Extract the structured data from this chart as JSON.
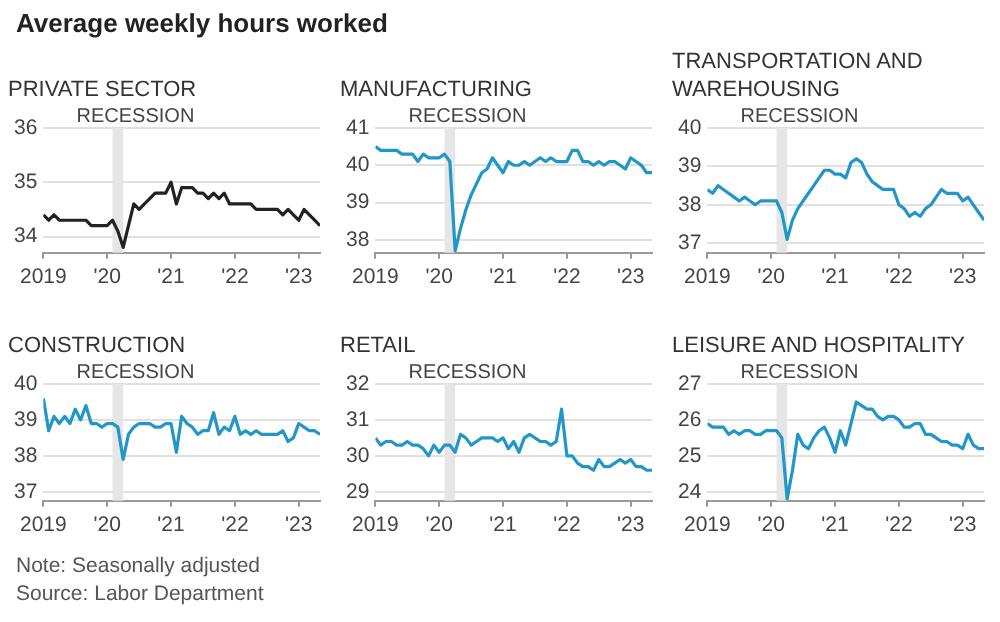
{
  "chart_data": [
    {
      "type": "line",
      "title": "Average weekly hours worked",
      "subtitle": "PRIVATE SECTOR",
      "color": "#222222",
      "ylim": [
        33.7,
        36
      ],
      "yticks": [
        34,
        35,
        36
      ],
      "xlim": [
        "2019-01",
        "2023-05"
      ],
      "xticks": [
        {
          "value": "2019-01",
          "label": "2019"
        },
        {
          "value": "2020-01",
          "label": "'20"
        },
        {
          "value": "2021-01",
          "label": "'21"
        },
        {
          "value": "2022-01",
          "label": "'22"
        },
        {
          "value": "2023-01",
          "label": "'23"
        }
      ],
      "grid": "y",
      "bands": [
        {
          "axis": "x",
          "from": "2020-02",
          "to": "2020-04",
          "label": "RECESSION",
          "color": "#e6e6e6"
        }
      ],
      "x": [
        "2019-01",
        "2019-02",
        "2019-03",
        "2019-04",
        "2019-05",
        "2019-06",
        "2019-07",
        "2019-08",
        "2019-09",
        "2019-10",
        "2019-11",
        "2019-12",
        "2020-01",
        "2020-02",
        "2020-03",
        "2020-04",
        "2020-05",
        "2020-06",
        "2020-07",
        "2020-08",
        "2020-09",
        "2020-10",
        "2020-11",
        "2020-12",
        "2021-01",
        "2021-02",
        "2021-03",
        "2021-04",
        "2021-05",
        "2021-06",
        "2021-07",
        "2021-08",
        "2021-09",
        "2021-10",
        "2021-11",
        "2021-12",
        "2022-01",
        "2022-02",
        "2022-03",
        "2022-04",
        "2022-05",
        "2022-06",
        "2022-07",
        "2022-08",
        "2022-09",
        "2022-10",
        "2022-11",
        "2022-12",
        "2023-01",
        "2023-02",
        "2023-03",
        "2023-04",
        "2023-05"
      ],
      "values": [
        34.4,
        34.3,
        34.4,
        34.3,
        34.3,
        34.3,
        34.3,
        34.3,
        34.3,
        34.2,
        34.2,
        34.2,
        34.2,
        34.3,
        34.1,
        33.8,
        34.2,
        34.6,
        34.5,
        34.6,
        34.7,
        34.8,
        34.8,
        34.8,
        35.0,
        34.6,
        34.9,
        34.9,
        34.9,
        34.8,
        34.8,
        34.7,
        34.8,
        34.7,
        34.8,
        34.6,
        34.6,
        34.6,
        34.6,
        34.6,
        34.5,
        34.5,
        34.5,
        34.5,
        34.5,
        34.4,
        34.5,
        34.4,
        34.3,
        34.5,
        34.4,
        34.3,
        34.2
      ]
    },
    {
      "type": "line",
      "title": "MANUFACTURING",
      "color": "#2196c8",
      "ylim": [
        37.65,
        41
      ],
      "yticks": [
        38,
        39,
        40,
        41
      ],
      "xlim": [
        "2019-01",
        "2023-05"
      ],
      "xticks": [
        {
          "value": "2019-01",
          "label": "2019"
        },
        {
          "value": "2020-01",
          "label": "'20"
        },
        {
          "value": "2021-01",
          "label": "'21"
        },
        {
          "value": "2022-01",
          "label": "'22"
        },
        {
          "value": "2023-01",
          "label": "'23"
        }
      ],
      "grid": "y",
      "bands": [
        {
          "axis": "x",
          "from": "2020-02",
          "to": "2020-04",
          "label": "RECESSION",
          "color": "#e6e6e6"
        }
      ],
      "x": [
        "2019-01",
        "2019-02",
        "2019-03",
        "2019-04",
        "2019-05",
        "2019-06",
        "2019-07",
        "2019-08",
        "2019-09",
        "2019-10",
        "2019-11",
        "2019-12",
        "2020-01",
        "2020-02",
        "2020-03",
        "2020-04",
        "2020-05",
        "2020-06",
        "2020-07",
        "2020-08",
        "2020-09",
        "2020-10",
        "2020-11",
        "2020-12",
        "2021-01",
        "2021-02",
        "2021-03",
        "2021-04",
        "2021-05",
        "2021-06",
        "2021-07",
        "2021-08",
        "2021-09",
        "2021-10",
        "2021-11",
        "2021-12",
        "2022-01",
        "2022-02",
        "2022-03",
        "2022-04",
        "2022-05",
        "2022-06",
        "2022-07",
        "2022-08",
        "2022-09",
        "2022-10",
        "2022-11",
        "2022-12",
        "2023-01",
        "2023-02",
        "2023-03",
        "2023-04",
        "2023-05"
      ],
      "values": [
        40.5,
        40.4,
        40.4,
        40.4,
        40.4,
        40.3,
        40.3,
        40.3,
        40.1,
        40.3,
        40.2,
        40.2,
        40.2,
        40.3,
        40.1,
        37.7,
        38.3,
        38.8,
        39.2,
        39.5,
        39.8,
        39.9,
        40.2,
        40.0,
        39.8,
        40.1,
        40.0,
        40.0,
        40.1,
        40.0,
        40.1,
        40.2,
        40.1,
        40.2,
        40.1,
        40.1,
        40.1,
        40.4,
        40.4,
        40.1,
        40.1,
        40.0,
        40.1,
        40.0,
        40.1,
        40.1,
        40.0,
        39.9,
        40.2,
        40.1,
        40.0,
        39.8,
        39.8
      ]
    },
    {
      "type": "line",
      "title": "TRANSPORTATION AND WAREHOUSING",
      "color": "#2196c8",
      "ylim": [
        36.75,
        40
      ],
      "yticks": [
        37,
        38,
        39,
        40
      ],
      "xlim": [
        "2019-01",
        "2023-05"
      ],
      "xticks": [
        {
          "value": "2019-01",
          "label": "2019"
        },
        {
          "value": "2020-01",
          "label": "'20"
        },
        {
          "value": "2021-01",
          "label": "'21"
        },
        {
          "value": "2022-01",
          "label": "'22"
        },
        {
          "value": "2023-01",
          "label": "'23"
        }
      ],
      "grid": "y",
      "bands": [
        {
          "axis": "x",
          "from": "2020-02",
          "to": "2020-04",
          "label": "RECESSION",
          "color": "#e6e6e6"
        }
      ],
      "x": [
        "2019-01",
        "2019-02",
        "2019-03",
        "2019-04",
        "2019-05",
        "2019-06",
        "2019-07",
        "2019-08",
        "2019-09",
        "2019-10",
        "2019-11",
        "2019-12",
        "2020-01",
        "2020-02",
        "2020-03",
        "2020-04",
        "2020-05",
        "2020-06",
        "2020-07",
        "2020-08",
        "2020-09",
        "2020-10",
        "2020-11",
        "2020-12",
        "2021-01",
        "2021-02",
        "2021-03",
        "2021-04",
        "2021-05",
        "2021-06",
        "2021-07",
        "2021-08",
        "2021-09",
        "2021-10",
        "2021-11",
        "2021-12",
        "2022-01",
        "2022-02",
        "2022-03",
        "2022-04",
        "2022-05",
        "2022-06",
        "2022-07",
        "2022-08",
        "2022-09",
        "2022-10",
        "2022-11",
        "2022-12",
        "2023-01",
        "2023-02",
        "2023-03",
        "2023-04",
        "2023-05"
      ],
      "values": [
        38.4,
        38.3,
        38.5,
        38.4,
        38.3,
        38.2,
        38.1,
        38.2,
        38.1,
        38.0,
        38.1,
        38.1,
        38.1,
        38.1,
        37.8,
        37.1,
        37.6,
        37.9,
        38.1,
        38.3,
        38.5,
        38.7,
        38.9,
        38.9,
        38.8,
        38.8,
        38.7,
        39.1,
        39.2,
        39.1,
        38.8,
        38.6,
        38.5,
        38.4,
        38.4,
        38.4,
        38.0,
        37.9,
        37.7,
        37.8,
        37.7,
        37.9,
        38.0,
        38.2,
        38.4,
        38.3,
        38.3,
        38.3,
        38.1,
        38.2,
        38.0,
        37.8,
        37.6
      ]
    },
    {
      "type": "line",
      "title": "CONSTRUCTION",
      "color": "#2196c8",
      "ylim": [
        36.75,
        40
      ],
      "yticks": [
        37,
        38,
        39,
        40
      ],
      "xlim": [
        "2019-01",
        "2023-05"
      ],
      "xticks": [
        {
          "value": "2019-01",
          "label": "2019"
        },
        {
          "value": "2020-01",
          "label": "'20"
        },
        {
          "value": "2021-01",
          "label": "'21"
        },
        {
          "value": "2022-01",
          "label": "'22"
        },
        {
          "value": "2023-01",
          "label": "'23"
        }
      ],
      "grid": "y",
      "bands": [
        {
          "axis": "x",
          "from": "2020-02",
          "to": "2020-04",
          "label": "RECESSION",
          "color": "#e6e6e6"
        }
      ],
      "annotations": [
        "Note: Seasonally adjusted",
        "Source: Labor Department"
      ],
      "x": [
        "2019-01",
        "2019-02",
        "2019-03",
        "2019-04",
        "2019-05",
        "2019-06",
        "2019-07",
        "2019-08",
        "2019-09",
        "2019-10",
        "2019-11",
        "2019-12",
        "2020-01",
        "2020-02",
        "2020-03",
        "2020-04",
        "2020-05",
        "2020-06",
        "2020-07",
        "2020-08",
        "2020-09",
        "2020-10",
        "2020-11",
        "2020-12",
        "2021-01",
        "2021-02",
        "2021-03",
        "2021-04",
        "2021-05",
        "2021-06",
        "2021-07",
        "2021-08",
        "2021-09",
        "2021-10",
        "2021-11",
        "2021-12",
        "2022-01",
        "2022-02",
        "2022-03",
        "2022-04",
        "2022-05",
        "2022-06",
        "2022-07",
        "2022-08",
        "2022-09",
        "2022-10",
        "2022-11",
        "2022-12",
        "2023-01",
        "2023-02",
        "2023-03",
        "2023-04",
        "2023-05"
      ],
      "values": [
        39.6,
        38.7,
        39.1,
        38.9,
        39.1,
        38.9,
        39.3,
        39.0,
        39.4,
        38.9,
        38.9,
        38.8,
        38.9,
        38.9,
        38.8,
        37.9,
        38.6,
        38.8,
        38.9,
        38.9,
        38.9,
        38.8,
        38.8,
        38.9,
        38.9,
        38.1,
        39.1,
        38.9,
        38.8,
        38.6,
        38.7,
        38.7,
        39.2,
        38.6,
        38.8,
        38.7,
        39.1,
        38.6,
        38.7,
        38.6,
        38.7,
        38.6,
        38.6,
        38.6,
        38.6,
        38.7,
        38.4,
        38.5,
        38.9,
        38.8,
        38.7,
        38.7,
        38.6
      ]
    },
    {
      "type": "line",
      "title": "RETAIL",
      "color": "#2196c8",
      "ylim": [
        28.75,
        32
      ],
      "yticks": [
        29,
        30,
        31,
        32
      ],
      "xlim": [
        "2019-01",
        "2023-05"
      ],
      "xticks": [
        {
          "value": "2019-01",
          "label": "2019"
        },
        {
          "value": "2020-01",
          "label": "'20"
        },
        {
          "value": "2021-01",
          "label": "'21"
        },
        {
          "value": "2022-01",
          "label": "'22"
        },
        {
          "value": "2023-01",
          "label": "'23"
        }
      ],
      "grid": "y",
      "bands": [
        {
          "axis": "x",
          "from": "2020-02",
          "to": "2020-04",
          "label": "RECESSION",
          "color": "#e6e6e6"
        }
      ],
      "x": [
        "2019-01",
        "2019-02",
        "2019-03",
        "2019-04",
        "2019-05",
        "2019-06",
        "2019-07",
        "2019-08",
        "2019-09",
        "2019-10",
        "2019-11",
        "2019-12",
        "2020-01",
        "2020-02",
        "2020-03",
        "2020-04",
        "2020-05",
        "2020-06",
        "2020-07",
        "2020-08",
        "2020-09",
        "2020-10",
        "2020-11",
        "2020-12",
        "2021-01",
        "2021-02",
        "2021-03",
        "2021-04",
        "2021-05",
        "2021-06",
        "2021-07",
        "2021-08",
        "2021-09",
        "2021-10",
        "2021-11",
        "2021-12",
        "2022-01",
        "2022-02",
        "2022-03",
        "2022-04",
        "2022-05",
        "2022-06",
        "2022-07",
        "2022-08",
        "2022-09",
        "2022-10",
        "2022-11",
        "2022-12",
        "2023-01",
        "2023-02",
        "2023-03",
        "2023-04",
        "2023-05"
      ],
      "values": [
        30.5,
        30.3,
        30.4,
        30.4,
        30.3,
        30.3,
        30.4,
        30.3,
        30.3,
        30.2,
        30.0,
        30.3,
        30.1,
        30.3,
        30.3,
        30.1,
        30.6,
        30.5,
        30.3,
        30.4,
        30.5,
        30.5,
        30.5,
        30.4,
        30.5,
        30.2,
        30.4,
        30.1,
        30.5,
        30.6,
        30.5,
        30.4,
        30.4,
        30.3,
        30.4,
        31.3,
        30.0,
        30.0,
        29.8,
        29.7,
        29.7,
        29.6,
        29.9,
        29.7,
        29.7,
        29.8,
        29.9,
        29.8,
        29.9,
        29.7,
        29.7,
        29.6,
        29.6
      ]
    },
    {
      "type": "line",
      "title": "LEISURE AND HOSPITALITY",
      "color": "#2196c8",
      "ylim": [
        23.75,
        27
      ],
      "yticks": [
        24,
        25,
        26,
        27
      ],
      "xlim": [
        "2019-01",
        "2023-05"
      ],
      "xticks": [
        {
          "value": "2019-01",
          "label": "2019"
        },
        {
          "value": "2020-01",
          "label": "'20"
        },
        {
          "value": "2021-01",
          "label": "'21"
        },
        {
          "value": "2022-01",
          "label": "'22"
        },
        {
          "value": "2023-01",
          "label": "'23"
        }
      ],
      "grid": "y",
      "bands": [
        {
          "axis": "x",
          "from": "2020-02",
          "to": "2020-04",
          "label": "RECESSION",
          "color": "#e6e6e6"
        }
      ],
      "x": [
        "2019-01",
        "2019-02",
        "2019-03",
        "2019-04",
        "2019-05",
        "2019-06",
        "2019-07",
        "2019-08",
        "2019-09",
        "2019-10",
        "2019-11",
        "2019-12",
        "2020-01",
        "2020-02",
        "2020-03",
        "2020-04",
        "2020-05",
        "2020-06",
        "2020-07",
        "2020-08",
        "2020-09",
        "2020-10",
        "2020-11",
        "2020-12",
        "2021-01",
        "2021-02",
        "2021-03",
        "2021-04",
        "2021-05",
        "2021-06",
        "2021-07",
        "2021-08",
        "2021-09",
        "2021-10",
        "2021-11",
        "2021-12",
        "2022-01",
        "2022-02",
        "2022-03",
        "2022-04",
        "2022-05",
        "2022-06",
        "2022-07",
        "2022-08",
        "2022-09",
        "2022-10",
        "2022-11",
        "2022-12",
        "2023-01",
        "2023-02",
        "2023-03",
        "2023-04",
        "2023-05"
      ],
      "values": [
        25.9,
        25.8,
        25.8,
        25.8,
        25.6,
        25.7,
        25.6,
        25.7,
        25.7,
        25.6,
        25.6,
        25.7,
        25.7,
        25.7,
        25.5,
        23.8,
        24.6,
        25.6,
        25.3,
        25.2,
        25.5,
        25.7,
        25.8,
        25.5,
        25.1,
        25.7,
        25.3,
        25.9,
        26.5,
        26.4,
        26.3,
        26.3,
        26.1,
        26.0,
        26.1,
        26.1,
        26.0,
        25.8,
        25.8,
        25.9,
        25.9,
        25.6,
        25.6,
        25.5,
        25.4,
        25.4,
        25.3,
        25.3,
        25.2,
        25.6,
        25.3,
        25.2,
        25.2
      ]
    }
  ]
}
